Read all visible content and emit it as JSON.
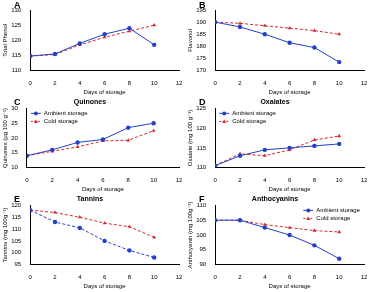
{
  "chart_data": [
    {
      "type": "line",
      "panel": "A",
      "x_label": "Days of storage",
      "y_label": "Total Phenol",
      "x": [
        0,
        2,
        4,
        6,
        8,
        10
      ],
      "xlim": [
        0,
        12
      ],
      "xticks": [
        0,
        2,
        4,
        6,
        8,
        10,
        12
      ],
      "ylim": [
        110,
        130
      ],
      "yticks": [
        110,
        115,
        120,
        125,
        130
      ],
      "grid": false,
      "series": [
        {
          "name": "Ambient storage",
          "color": "#2340c8",
          "marker": "circle",
          "line_style": "solid",
          "values": [
            114.8,
            115.5,
            119,
            122,
            124,
            118.5
          ]
        },
        {
          "name": "Cold storage",
          "color": "#d42a2a",
          "marker": "triangle",
          "line_style": "dashed",
          "values": [
            114.8,
            115.3,
            118.5,
            121,
            123,
            125
          ]
        }
      ]
    },
    {
      "type": "line",
      "panel": "B",
      "x_label": "Days of storage",
      "y_label": "Flavonol",
      "x": [
        0,
        2,
        4,
        6,
        8,
        10
      ],
      "xlim": [
        0,
        12
      ],
      "xticks": [
        0,
        2,
        4,
        6,
        8,
        10,
        12
      ],
      "ylim": [
        170,
        195
      ],
      "yticks": [
        170,
        175,
        180,
        185,
        190,
        195
      ],
      "grid": false,
      "series": [
        {
          "name": "Ambient storage",
          "color": "#2340c8",
          "marker": "circle",
          "line_style": "solid",
          "values": [
            190,
            188,
            185,
            181.5,
            179.5,
            173.5
          ]
        },
        {
          "name": "Cold storage",
          "color": "#d42a2a",
          "marker": "triangle",
          "line_style": "dashed",
          "values": [
            190,
            189.5,
            188.5,
            187.5,
            186.5,
            185
          ]
        }
      ]
    },
    {
      "type": "line",
      "panel": "C",
      "title": "Quinones",
      "x_label": "Days of storage",
      "y_label": "Quinones (µg 100 g⁻¹)",
      "x": [
        0,
        2,
        4,
        6,
        8,
        10
      ],
      "xlim": [
        0,
        12
      ],
      "xticks": [
        0,
        2,
        4,
        6,
        8,
        10,
        12
      ],
      "ylim": [
        10,
        30
      ],
      "yticks": [
        10,
        15,
        20,
        25,
        30
      ],
      "grid": false,
      "legend": "top left",
      "series": [
        {
          "name": "Ambient storage",
          "color": "#2340c8",
          "marker": "circle",
          "line_style": "solid",
          "values": [
            14,
            16,
            18.5,
            19.5,
            23.5,
            25
          ]
        },
        {
          "name": "Cold storage",
          "color": "#d42a2a",
          "marker": "triangle",
          "line_style": "dashed",
          "values": [
            14,
            15.5,
            17,
            19,
            19.2,
            22.5
          ]
        }
      ]
    },
    {
      "type": "line",
      "panel": "D",
      "title": "Oxalates",
      "x_label": "Days of storage",
      "y_label": "Oxalate (mg 100 g⁻¹)",
      "x": [
        0,
        2,
        4,
        6,
        8,
        10
      ],
      "xlim": [
        0,
        12
      ],
      "xticks": [
        0,
        2,
        4,
        6,
        8,
        10,
        12
      ],
      "ylim": [
        110,
        125
      ],
      "yticks": [
        110,
        115,
        120,
        125
      ],
      "grid": false,
      "legend": "top left",
      "series": [
        {
          "name": "Ambient storage",
          "color": "#2340c8",
          "marker": "circle",
          "line_style": "solid",
          "values": [
            110.5,
            113,
            114.5,
            115,
            115.5,
            116
          ]
        },
        {
          "name": "Cold storage",
          "color": "#d42a2a",
          "marker": "triangle",
          "line_style": "dashed",
          "values": [
            110.5,
            113.5,
            113,
            114.5,
            117,
            118
          ]
        }
      ]
    },
    {
      "type": "line",
      "panel": "E",
      "title": "Tannins",
      "x_label": "Days of storage",
      "y_label": "Tannins (mg 100g⁻¹)",
      "x": [
        0,
        2,
        4,
        6,
        8,
        10
      ],
      "xlim": [
        0,
        12
      ],
      "xticks": [
        0,
        2,
        4,
        6,
        8,
        10,
        12
      ],
      "ylim": [
        95,
        120
      ],
      "yticks": [
        95,
        100,
        105,
        110,
        115,
        120
      ],
      "grid": false,
      "series": [
        {
          "name": "Ambient storage",
          "color": "#2340c8",
          "marker": "circle",
          "line_style": "dashed",
          "values": [
            118,
            113,
            110.5,
            105,
            101,
            98
          ]
        },
        {
          "name": "Cold storage",
          "color": "#d42a2a",
          "marker": "triangle",
          "line_style": "dashed",
          "values": [
            118,
            117,
            115,
            112.5,
            111,
            106.5
          ]
        }
      ]
    },
    {
      "type": "line",
      "panel": "F",
      "title": "Anthocyanins",
      "x_label": "Days of storage",
      "y_label": "Anthocyanin (mg 100g⁻¹)",
      "x": [
        0,
        2,
        4,
        6,
        8,
        10
      ],
      "xlim": [
        0,
        12
      ],
      "xticks": [
        0,
        2,
        4,
        6,
        8,
        10,
        12
      ],
      "ylim": [
        90,
        110
      ],
      "yticks": [
        90,
        95,
        100,
        105,
        110
      ],
      "grid": false,
      "legend": "top right",
      "series": [
        {
          "name": "Ambient storage",
          "color": "#2340c8",
          "marker": "circle",
          "line_style": "solid",
          "values": [
            105,
            105,
            102.5,
            100,
            96.5,
            92
          ]
        },
        {
          "name": "Cold storage",
          "color": "#d42a2a",
          "marker": "triangle",
          "line_style": "dashed",
          "values": [
            105,
            105,
            103.5,
            102.5,
            101.5,
            101
          ]
        }
      ]
    }
  ]
}
